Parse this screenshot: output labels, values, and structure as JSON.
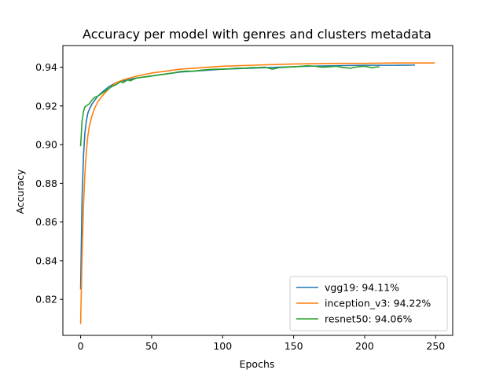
{
  "chart_data": {
    "type": "line",
    "title": "Accuracy per model with genres and clusters metadata",
    "xlabel": "Epochs",
    "ylabel": "Accuracy",
    "xlim": [
      -12.5,
      262
    ],
    "ylim": [
      0.8014,
      0.9512
    ],
    "xticks": [
      0,
      50,
      100,
      150,
      200,
      250
    ],
    "yticks": [
      0.82,
      0.84,
      0.86,
      0.88,
      0.9,
      0.92,
      0.94
    ],
    "ytick_labels": [
      "0.82",
      "0.84",
      "0.86",
      "0.88",
      "0.90",
      "0.92",
      "0.94"
    ],
    "legend_position": "lower-right",
    "grid": false,
    "series": [
      {
        "name": "vgg19: 94.11%",
        "color": "#1f77b4",
        "x": [
          0,
          1,
          2,
          3,
          4,
          5,
          6,
          8,
          10,
          12,
          15,
          20,
          25,
          30,
          40,
          50,
          60,
          70,
          80,
          90,
          100,
          120,
          140,
          160,
          180,
          200,
          220,
          235
        ],
        "y": [
          0.8255,
          0.872,
          0.894,
          0.906,
          0.912,
          0.916,
          0.918,
          0.921,
          0.923,
          0.925,
          0.927,
          0.93,
          0.932,
          0.933,
          0.9345,
          0.9355,
          0.9365,
          0.9375,
          0.938,
          0.9385,
          0.939,
          0.9395,
          0.94,
          0.9405,
          0.9408,
          0.941,
          0.941,
          0.9411
        ]
      },
      {
        "name": "inception_v3: 94.22%",
        "color": "#ff7f0e",
        "x": [
          0,
          1,
          2,
          3,
          4,
          5,
          6,
          8,
          10,
          12,
          15,
          20,
          25,
          30,
          40,
          50,
          60,
          70,
          80,
          90,
          100,
          120,
          140,
          160,
          180,
          200,
          220,
          240,
          249
        ],
        "y": [
          0.8075,
          0.842,
          0.868,
          0.885,
          0.896,
          0.904,
          0.909,
          0.915,
          0.919,
          0.922,
          0.925,
          0.929,
          0.932,
          0.9335,
          0.9355,
          0.937,
          0.938,
          0.939,
          0.9395,
          0.94,
          0.9405,
          0.941,
          0.9415,
          0.9418,
          0.942,
          0.942,
          0.9422,
          0.9422,
          0.9422
        ]
      },
      {
        "name": "resnet50: 94.06%",
        "color": "#2ca02c",
        "x": [
          0,
          1,
          2,
          3,
          4,
          5,
          6,
          8,
          10,
          12,
          14,
          16,
          18,
          20,
          22,
          25,
          28,
          30,
          33,
          35,
          38,
          40,
          43,
          45,
          48,
          50,
          55,
          60,
          65,
          70,
          75,
          80,
          85,
          90,
          95,
          100,
          105,
          110,
          115,
          120,
          125,
          130,
          135,
          140,
          145,
          150,
          155,
          160,
          165,
          170,
          175,
          180,
          185,
          190,
          195,
          200,
          205,
          210
        ],
        "y": [
          0.8995,
          0.912,
          0.917,
          0.9195,
          0.92,
          0.9205,
          0.921,
          0.923,
          0.9245,
          0.925,
          0.926,
          0.927,
          0.928,
          0.929,
          0.93,
          0.931,
          0.9325,
          0.932,
          0.9335,
          0.933,
          0.934,
          0.9345,
          0.9348,
          0.935,
          0.9352,
          0.9355,
          0.936,
          0.9365,
          0.937,
          0.9378,
          0.938,
          0.938,
          0.9385,
          0.9388,
          0.939,
          0.939,
          0.9392,
          0.9395,
          0.9395,
          0.9398,
          0.9398,
          0.94,
          0.939,
          0.9398,
          0.94,
          0.9402,
          0.9405,
          0.9408,
          0.9405,
          0.94,
          0.9402,
          0.9405,
          0.9398,
          0.9395,
          0.9402,
          0.9405,
          0.9398,
          0.9402
        ]
      }
    ]
  }
}
